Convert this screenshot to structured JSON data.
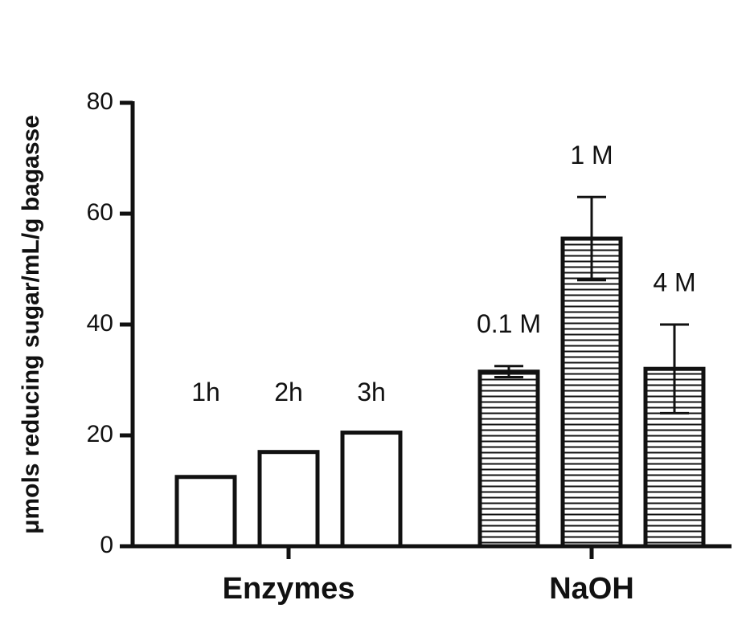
{
  "chart_data": {
    "type": "bar",
    "y_label": "μmols reducing sugar/mL/g bagasse",
    "groups": [
      {
        "name": "Enzymes",
        "categories": [
          "1h",
          "2h",
          "3h"
        ],
        "values": [
          12.5,
          17,
          20.5
        ],
        "pattern": "none"
      },
      {
        "name": "NaOH",
        "categories": [
          "0.1 M",
          "1 M",
          "4 M"
        ],
        "values": [
          31.5,
          55.5,
          32
        ],
        "errors": [
          1,
          7.5,
          8
        ],
        "pattern": "hatch"
      }
    ],
    "color": "#111111",
    "ylim": [
      0,
      80
    ],
    "yticks": [
      0,
      20,
      40,
      60,
      80
    ]
  }
}
